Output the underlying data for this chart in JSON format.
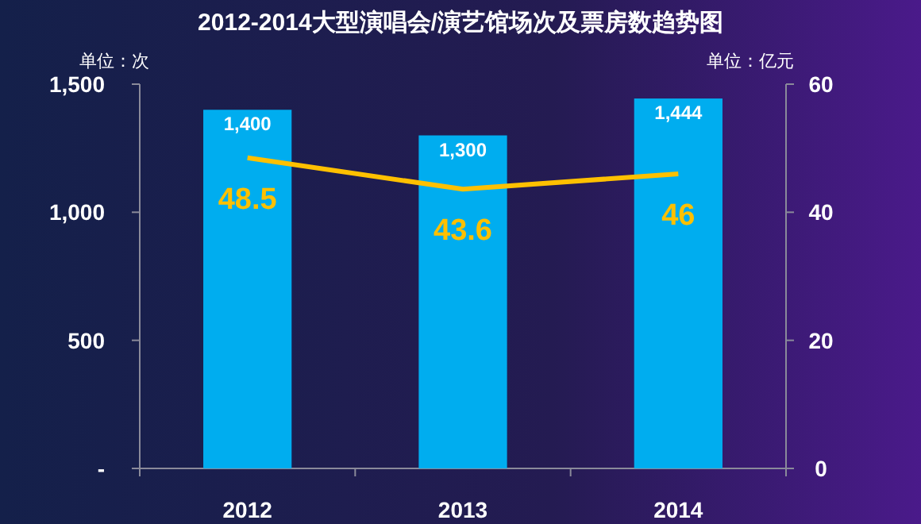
{
  "chart_data": {
    "type": "bar",
    "title": "2012-2014大型演唱会/演艺馆场次及票房数趋势图",
    "ylabel": "单位：次",
    "y2label": "单位：亿元",
    "categories": [
      "2012",
      "2013",
      "2014"
    ],
    "series": [
      {
        "axis": "y",
        "color": "#00adef",
        "values": [
          1400,
          1300,
          1444
        ],
        "value_labels": [
          "1,400",
          "1,300",
          "1,444"
        ]
      },
      {
        "type": "line",
        "axis": "y2",
        "color": "#ffc000",
        "values": [
          48.5,
          43.6,
          46
        ],
        "value_labels": [
          "48.5",
          "43.6",
          "46"
        ]
      }
    ],
    "ylim": [
      0,
      1500
    ],
    "yticks": [
      {
        "value": 0,
        "label": "-"
      },
      500,
      {
        "value": 1000,
        "label": "1,000"
      },
      {
        "value": 1500,
        "label": "1,500"
      }
    ],
    "y2lim": [
      0,
      60
    ],
    "y2ticks": [
      0,
      20,
      40,
      60
    ],
    "grid": false,
    "marker": "none"
  }
}
